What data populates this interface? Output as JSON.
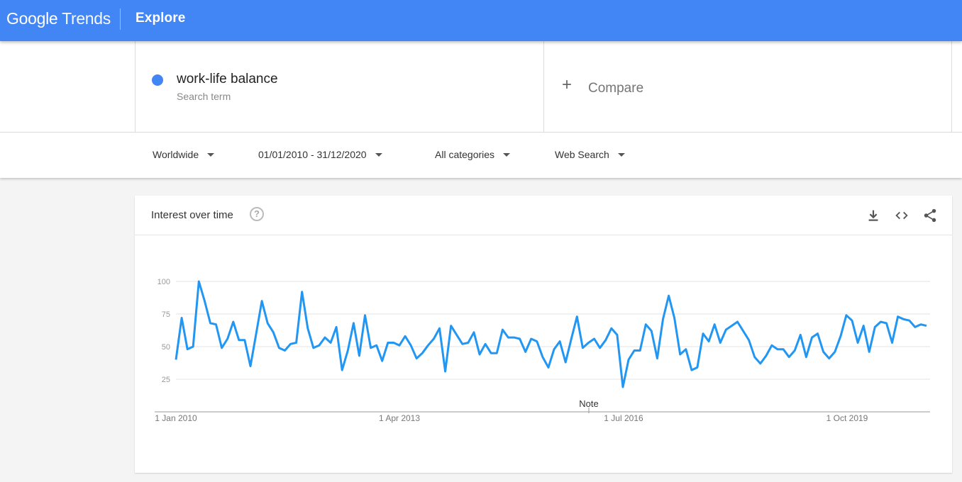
{
  "header": {
    "logo_google": "Google",
    "logo_trends": "Trends",
    "section": "Explore"
  },
  "search_term": {
    "name": "work-life balance",
    "type": "Search term",
    "color": "#4285f4"
  },
  "compare": {
    "label": "Compare"
  },
  "filters": {
    "region": "Worldwide",
    "date_range": "01/01/2010 - 31/12/2020",
    "category": "All categories",
    "search_type": "Web Search"
  },
  "card": {
    "title": "Interest over time",
    "icons": [
      "help-icon",
      "download-icon",
      "embed-icon",
      "share-icon"
    ]
  },
  "chart_data": {
    "type": "line",
    "title": "",
    "xlabel": "",
    "ylabel": "",
    "ylim": [
      0,
      100
    ],
    "yticks": [
      25,
      50,
      75,
      100
    ],
    "x_start": "2010-01",
    "x_end": "2020-12",
    "x_tick_labels": [
      "1 Jan 2010",
      "1 Apr 2013",
      "1 Jul 2016",
      "1 Oct 2019"
    ],
    "note_label": "Note",
    "grid": true,
    "series": [
      {
        "color": "#2196f3",
        "values": [
          40,
          72,
          48,
          50,
          100,
          85,
          68,
          67,
          49,
          56,
          69,
          55,
          55,
          35,
          60,
          85,
          68,
          61,
          49,
          47,
          52,
          53,
          92,
          64,
          49,
          51,
          57,
          53,
          65,
          32,
          47,
          68,
          43,
          74,
          49,
          51,
          39,
          53,
          53,
          51,
          58,
          51,
          41,
          45,
          51,
          56,
          64,
          31,
          66,
          59,
          52,
          53,
          61,
          44,
          52,
          45,
          45,
          63,
          57,
          57,
          56,
          46,
          56,
          54,
          42,
          34,
          48,
          54,
          38,
          56,
          73,
          49,
          53,
          56,
          49,
          55,
          64,
          59,
          19,
          40,
          47,
          47,
          67,
          62,
          41,
          71,
          89,
          72,
          44,
          48,
          32,
          34,
          60,
          54,
          67,
          53,
          63,
          66,
          69,
          62,
          55,
          42,
          37,
          43,
          51,
          48,
          48,
          42,
          47,
          59,
          42,
          57,
          60,
          46,
          41,
          46,
          58,
          74,
          70,
          53,
          66,
          46,
          65,
          69,
          68,
          53,
          73,
          71,
          70,
          65,
          67,
          66
        ]
      }
    ]
  }
}
